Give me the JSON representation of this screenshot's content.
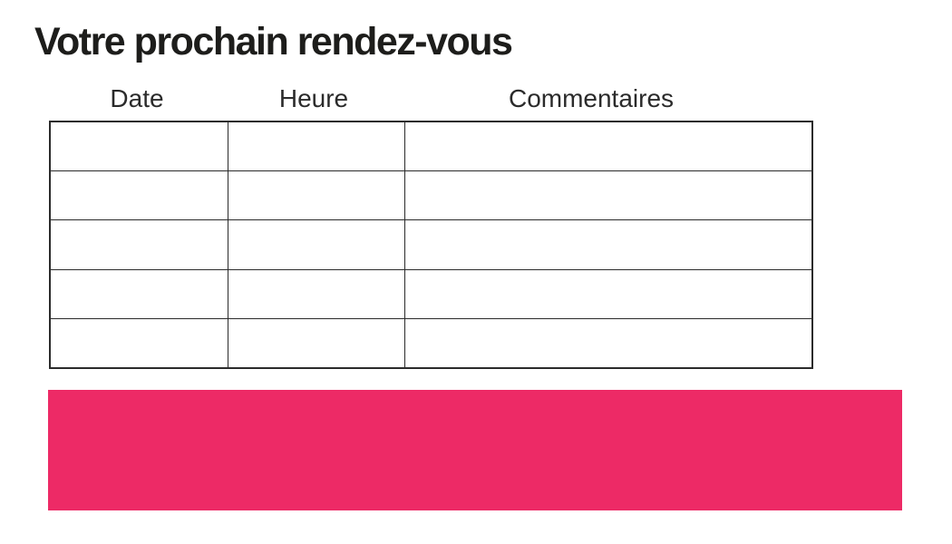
{
  "page": {
    "title": "Votre prochain rendez-vous"
  },
  "table": {
    "columns": [
      "Date",
      "Heure",
      "Commentaires"
    ],
    "rows": [
      [
        "",
        "",
        ""
      ],
      [
        "",
        "",
        ""
      ],
      [
        "",
        "",
        ""
      ],
      [
        "",
        "",
        ""
      ],
      [
        "",
        "",
        ""
      ]
    ]
  },
  "banner": {
    "text": ""
  },
  "colors": {
    "accent_pink": "#ED2A66",
    "table_border": "#2b2b2b",
    "text": "#1d1d1b"
  }
}
